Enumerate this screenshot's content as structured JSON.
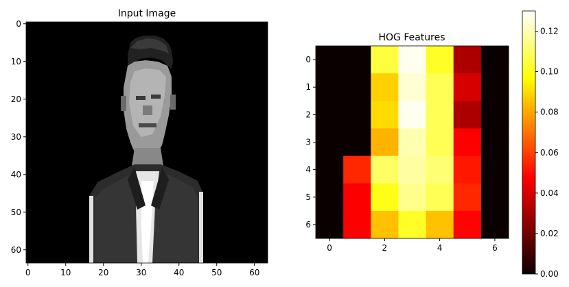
{
  "chart_data": [
    {
      "type": "heatmap",
      "title": "Input Image",
      "colormap": "gray",
      "image_size": [
        64,
        64
      ],
      "xlim": [
        -0.5,
        63.5
      ],
      "ylim": [
        63.5,
        -0.5
      ],
      "x_ticks": [
        "0",
        "10",
        "20",
        "30",
        "40",
        "50",
        "60"
      ],
      "y_ticks": [
        "0",
        "10",
        "20",
        "30",
        "40",
        "50",
        "60"
      ],
      "description_content": "grayscale photo of a person, head and shoulders, on a black background"
    },
    {
      "type": "heatmap",
      "title": "HOG Features",
      "colormap": "hot",
      "x_ticks": [
        "0",
        "2",
        "4",
        "6"
      ],
      "y_ticks": [
        "0",
        "1",
        "2",
        "3",
        "4",
        "5",
        "6"
      ],
      "values": [
        [
          0.0,
          0.0,
          0.105,
          0.128,
          0.102,
          0.03,
          0.0
        ],
        [
          0.0,
          0.0,
          0.088,
          0.124,
          0.108,
          0.038,
          0.0
        ],
        [
          0.0,
          0.0,
          0.09,
          0.128,
          0.108,
          0.03,
          0.0
        ],
        [
          0.0,
          0.0,
          0.082,
          0.12,
          0.108,
          0.045,
          0.0
        ],
        [
          0.0,
          0.055,
          0.11,
          0.118,
          0.112,
          0.052,
          0.0
        ],
        [
          0.0,
          0.045,
          0.1,
          0.115,
          0.108,
          0.055,
          0.0
        ],
        [
          0.0,
          0.045,
          0.085,
          0.102,
          0.085,
          0.048,
          0.0
        ]
      ],
      "colorbar": {
        "vmin": 0.0,
        "vmax": 0.13,
        "ticks": [
          "0.00",
          "0.02",
          "0.04",
          "0.06",
          "0.08",
          "0.10",
          "0.12"
        ]
      }
    }
  ]
}
